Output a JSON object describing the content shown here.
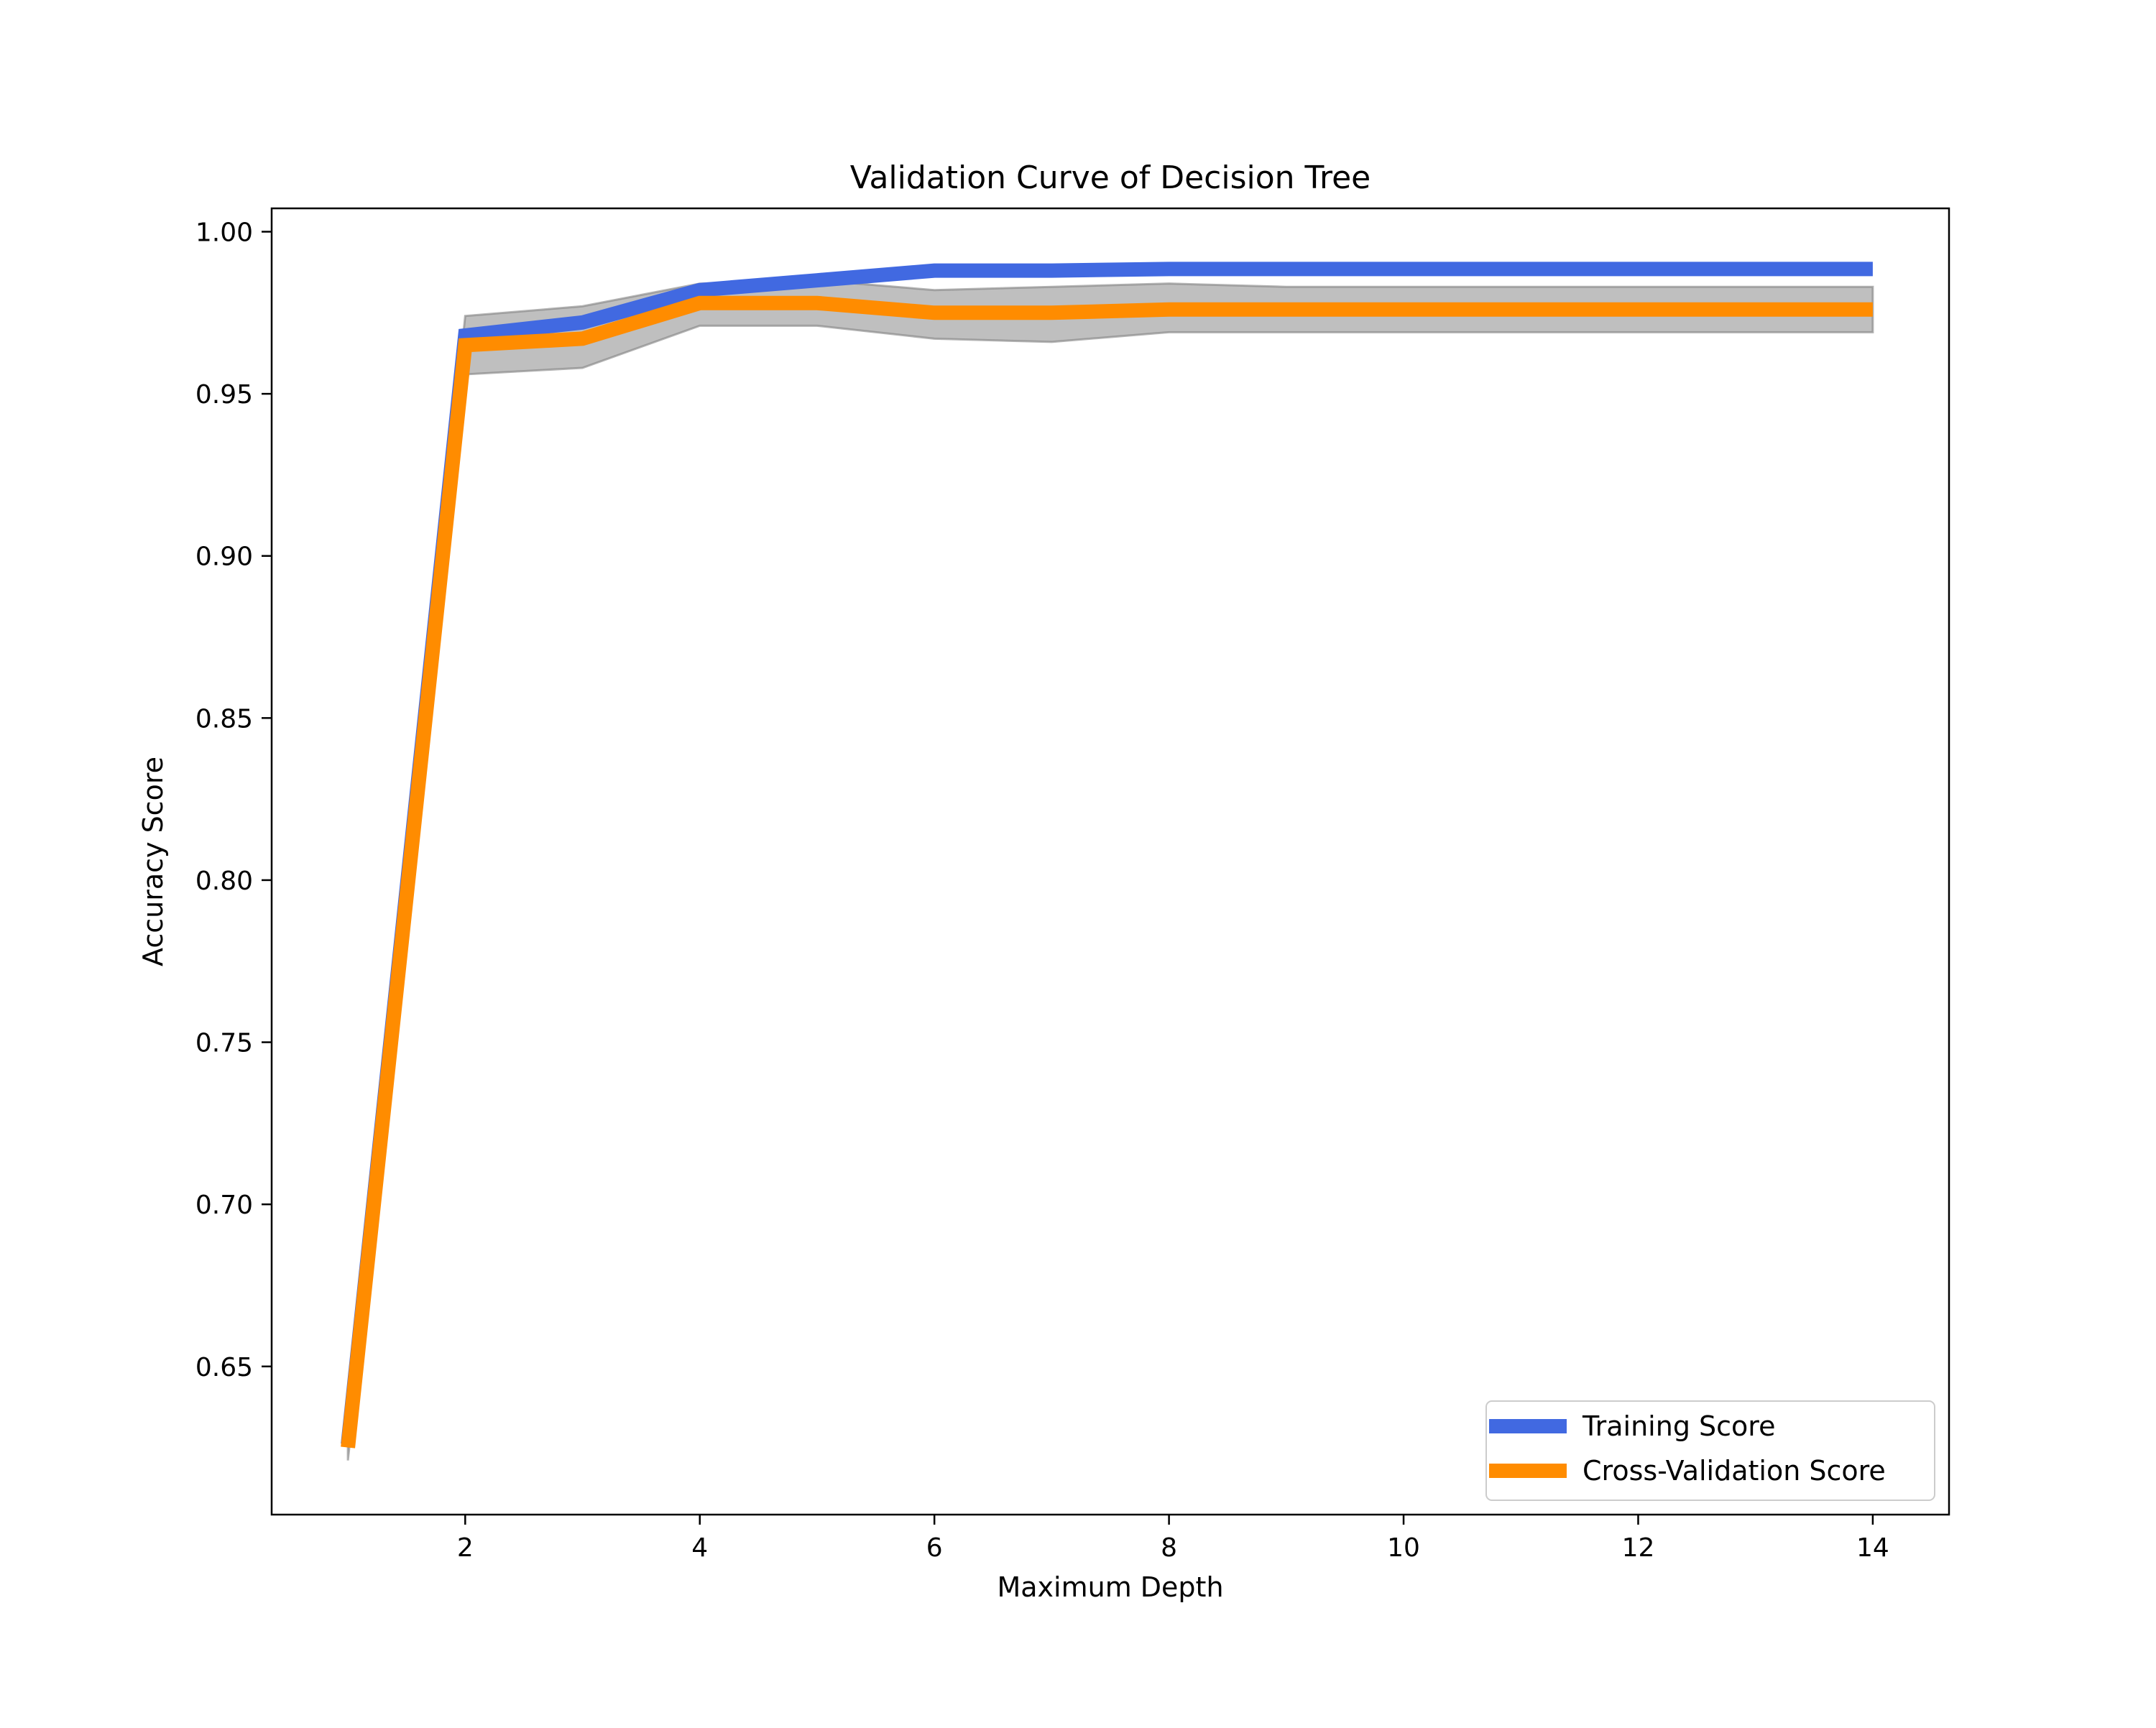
{
  "chart_data": {
    "type": "line",
    "title": "Validation Curve of Decision Tree",
    "xlabel": "Maximum Depth",
    "ylabel": "Accuracy Score",
    "xlim": [
      0.35,
      14.65
    ],
    "ylim": [
      0.6043,
      1.0072
    ],
    "xticks": [
      2,
      4,
      6,
      8,
      10,
      12,
      14
    ],
    "xtick_labels": [
      "2",
      "4",
      "6",
      "8",
      "10",
      "12",
      "14"
    ],
    "yticks": [
      0.65,
      0.7,
      0.75,
      0.8,
      0.85,
      0.9,
      0.95,
      1.0
    ],
    "ytick_labels": [
      "0.65",
      "0.70",
      "0.75",
      "0.80",
      "0.85",
      "0.90",
      "0.95",
      "1.00"
    ],
    "grid": false,
    "legend_position": "lower-right",
    "x": [
      1,
      2,
      3,
      4,
      5,
      6,
      7,
      8,
      9,
      10,
      11,
      12,
      13,
      14
    ],
    "series": [
      {
        "name": "Training Score",
        "color": "#4169e1",
        "values": [
          0.626,
          0.968,
          0.972,
          0.982,
          0.985,
          0.988,
          0.988,
          0.9885,
          0.9885,
          0.9885,
          0.9885,
          0.9885,
          0.9885,
          0.9885
        ]
      },
      {
        "name": "Cross-Validation Score",
        "color": "#ff8c00",
        "values": [
          0.625,
          0.965,
          0.967,
          0.978,
          0.978,
          0.975,
          0.975,
          0.976,
          0.976,
          0.976,
          0.976,
          0.976,
          0.976,
          0.976
        ],
        "band_lower": [
          0.621,
          0.956,
          0.958,
          0.971,
          0.971,
          0.967,
          0.966,
          0.969,
          0.969,
          0.969,
          0.969,
          0.969,
          0.969,
          0.969
        ],
        "band_upper": [
          0.629,
          0.974,
          0.977,
          0.984,
          0.985,
          0.982,
          0.983,
          0.984,
          0.983,
          0.983,
          0.983,
          0.983,
          0.983,
          0.983
        ],
        "band_color": "#808080"
      }
    ]
  }
}
